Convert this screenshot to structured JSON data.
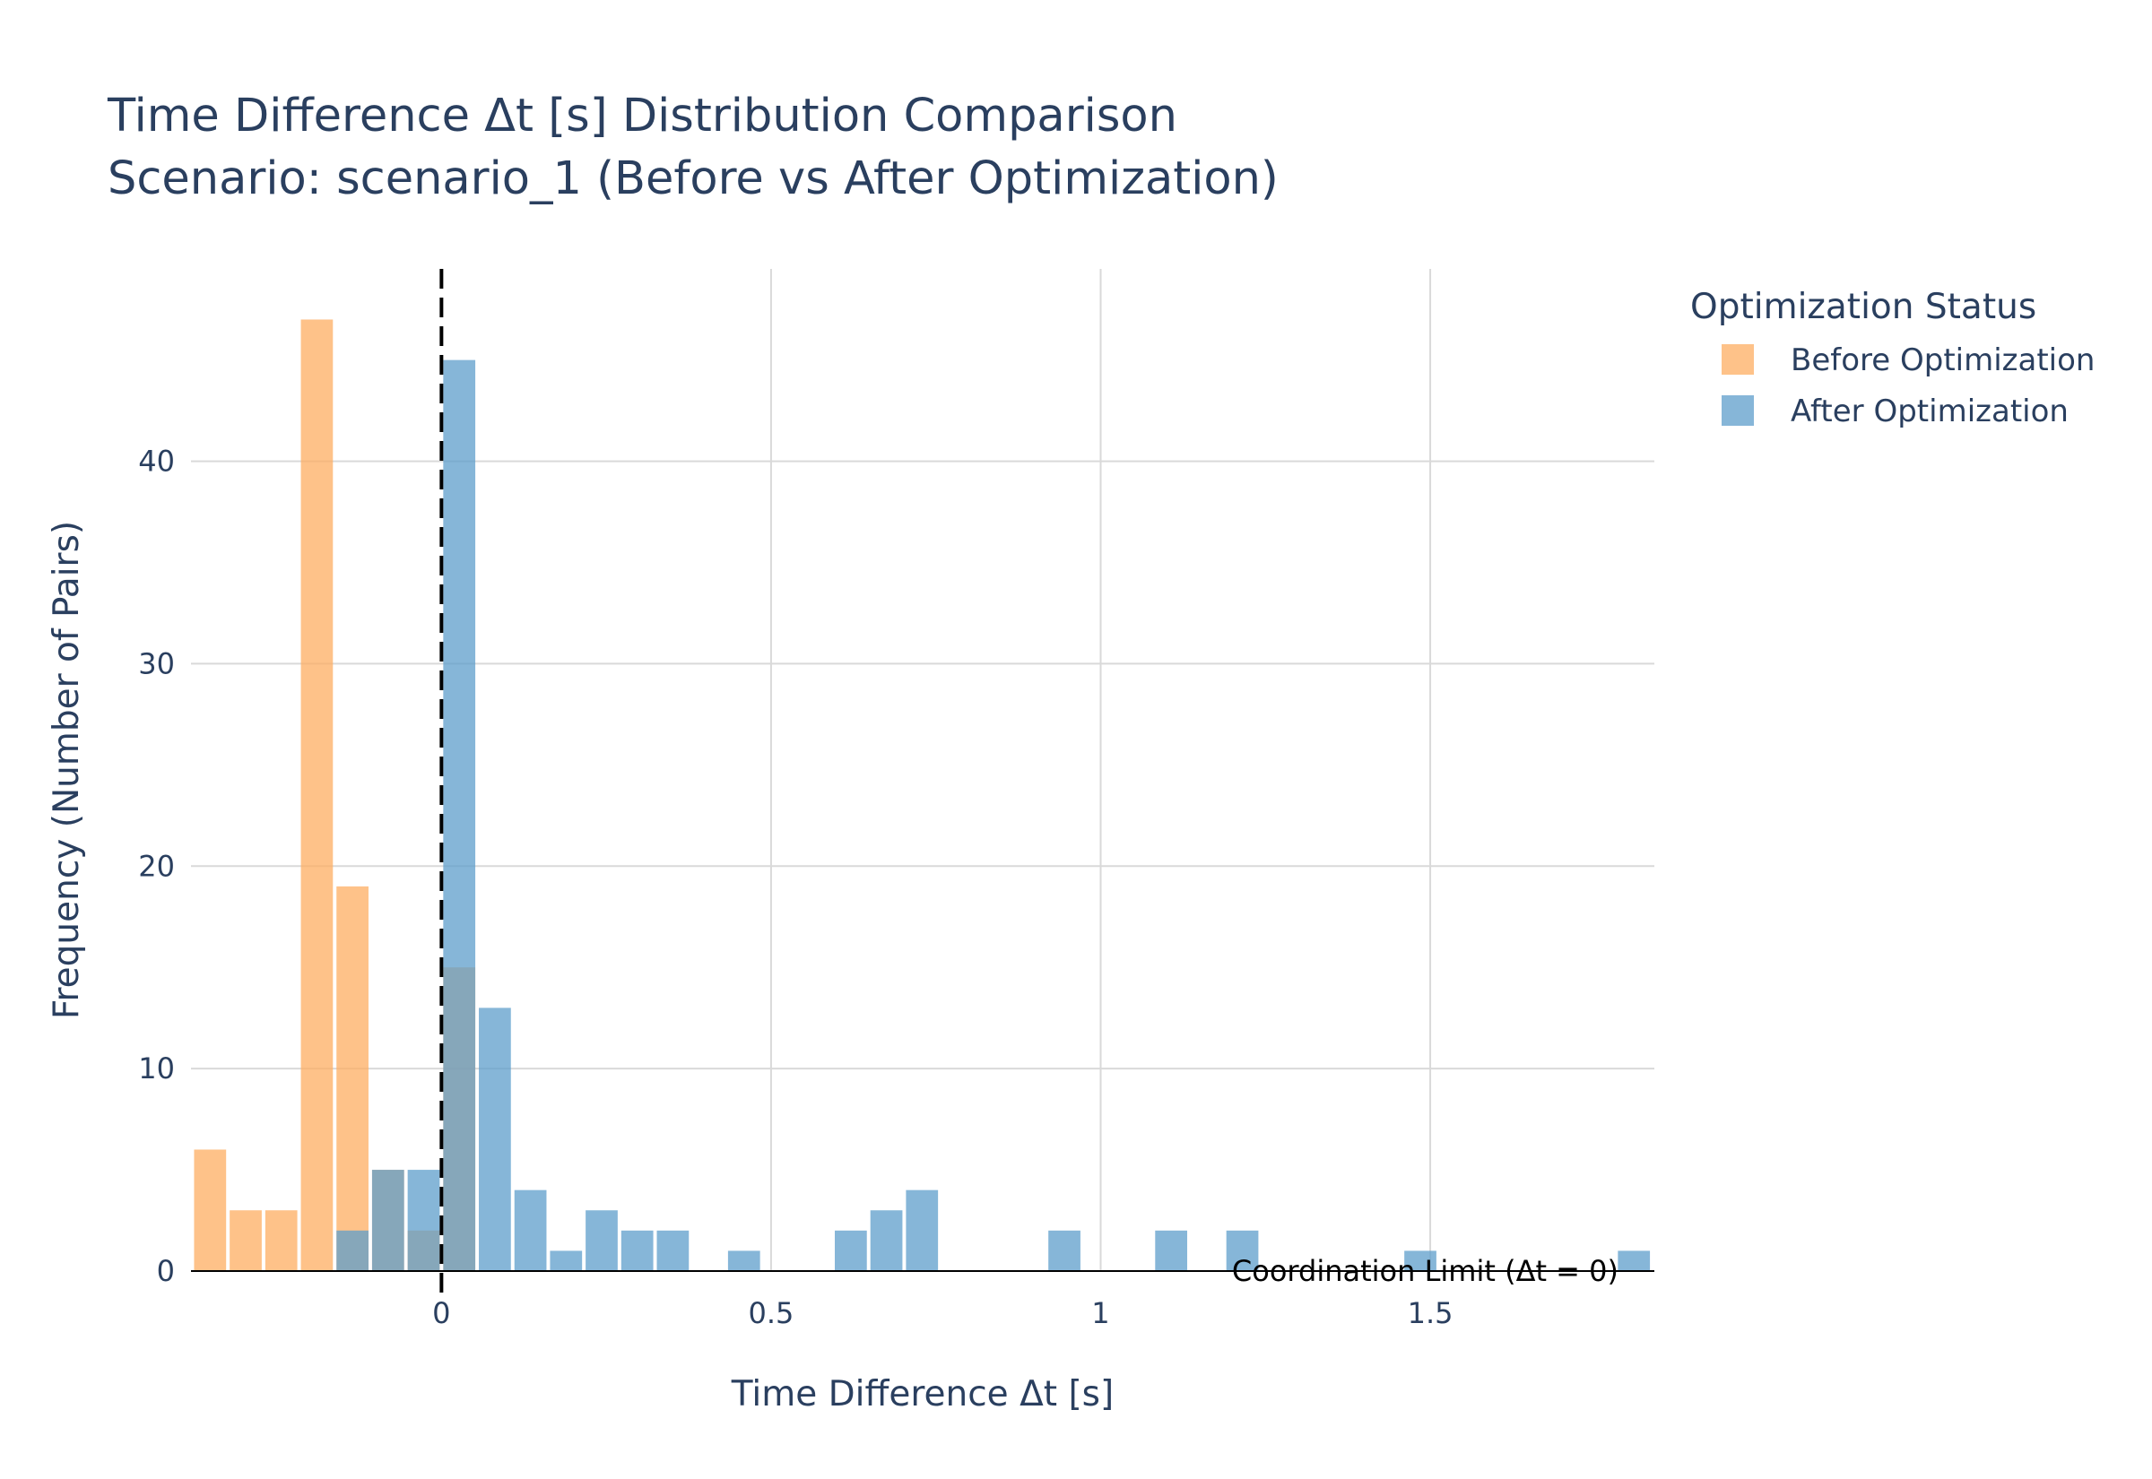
{
  "chart_data": {
    "type": "bar",
    "title": "Time Difference Δt [s] Distribution Comparison",
    "subtitle": "Scenario: scenario_1 (Before vs After Optimization)",
    "xlabel": "Time Difference Δt [s]",
    "ylabel": "Frequency (Number of Pairs)",
    "xlim": [
      -0.38,
      1.84
    ],
    "ylim": [
      0,
      49.5
    ],
    "x_ticks": [
      0,
      0.5,
      1,
      1.5
    ],
    "x_tick_labels": [
      "0",
      "0.5",
      "1",
      "1.5"
    ],
    "y_ticks": [
      0,
      10,
      20,
      30,
      40
    ],
    "y_tick_labels": [
      "0",
      "10",
      "20",
      "30",
      "40"
    ],
    "grid": true,
    "bin_width": 0.054,
    "legend": {
      "title": "Optimization Status",
      "placement": "right"
    },
    "series": [
      {
        "name": "Before Optimization",
        "color": "#fdae61",
        "opacity": 0.75,
        "bins": [
          {
            "x0": -0.378,
            "count": 6
          },
          {
            "x0": -0.324,
            "count": 3
          },
          {
            "x0": -0.27,
            "count": 3
          },
          {
            "x0": -0.216,
            "count": 47
          },
          {
            "x0": -0.162,
            "count": 19
          },
          {
            "x0": -0.108,
            "count": 5
          },
          {
            "x0": -0.054,
            "count": 2
          },
          {
            "x0": 0.0,
            "count": 15
          }
        ]
      },
      {
        "name": "After Optimization",
        "color": "#5d9dcb",
        "opacity": 0.75,
        "bins": [
          {
            "x0": -0.162,
            "count": 2
          },
          {
            "x0": -0.108,
            "count": 5
          },
          {
            "x0": -0.054,
            "count": 5
          },
          {
            "x0": 0.0,
            "count": 45
          },
          {
            "x0": 0.054,
            "count": 13
          },
          {
            "x0": 0.108,
            "count": 4
          },
          {
            "x0": 0.162,
            "count": 1
          },
          {
            "x0": 0.216,
            "count": 3
          },
          {
            "x0": 0.27,
            "count": 2
          },
          {
            "x0": 0.324,
            "count": 2
          },
          {
            "x0": 0.432,
            "count": 1
          },
          {
            "x0": 0.594,
            "count": 2
          },
          {
            "x0": 0.648,
            "count": 3
          },
          {
            "x0": 0.702,
            "count": 4
          },
          {
            "x0": 0.918,
            "count": 2
          },
          {
            "x0": 1.08,
            "count": 2
          },
          {
            "x0": 1.188,
            "count": 2
          },
          {
            "x0": 1.458,
            "count": 1
          },
          {
            "x0": 1.782,
            "count": 1
          }
        ]
      }
    ],
    "annotations": [
      {
        "type": "vline",
        "x": 0,
        "style": "dashed",
        "color": "#000000",
        "text": "Coordination Limit (Δt = 0)"
      }
    ]
  }
}
